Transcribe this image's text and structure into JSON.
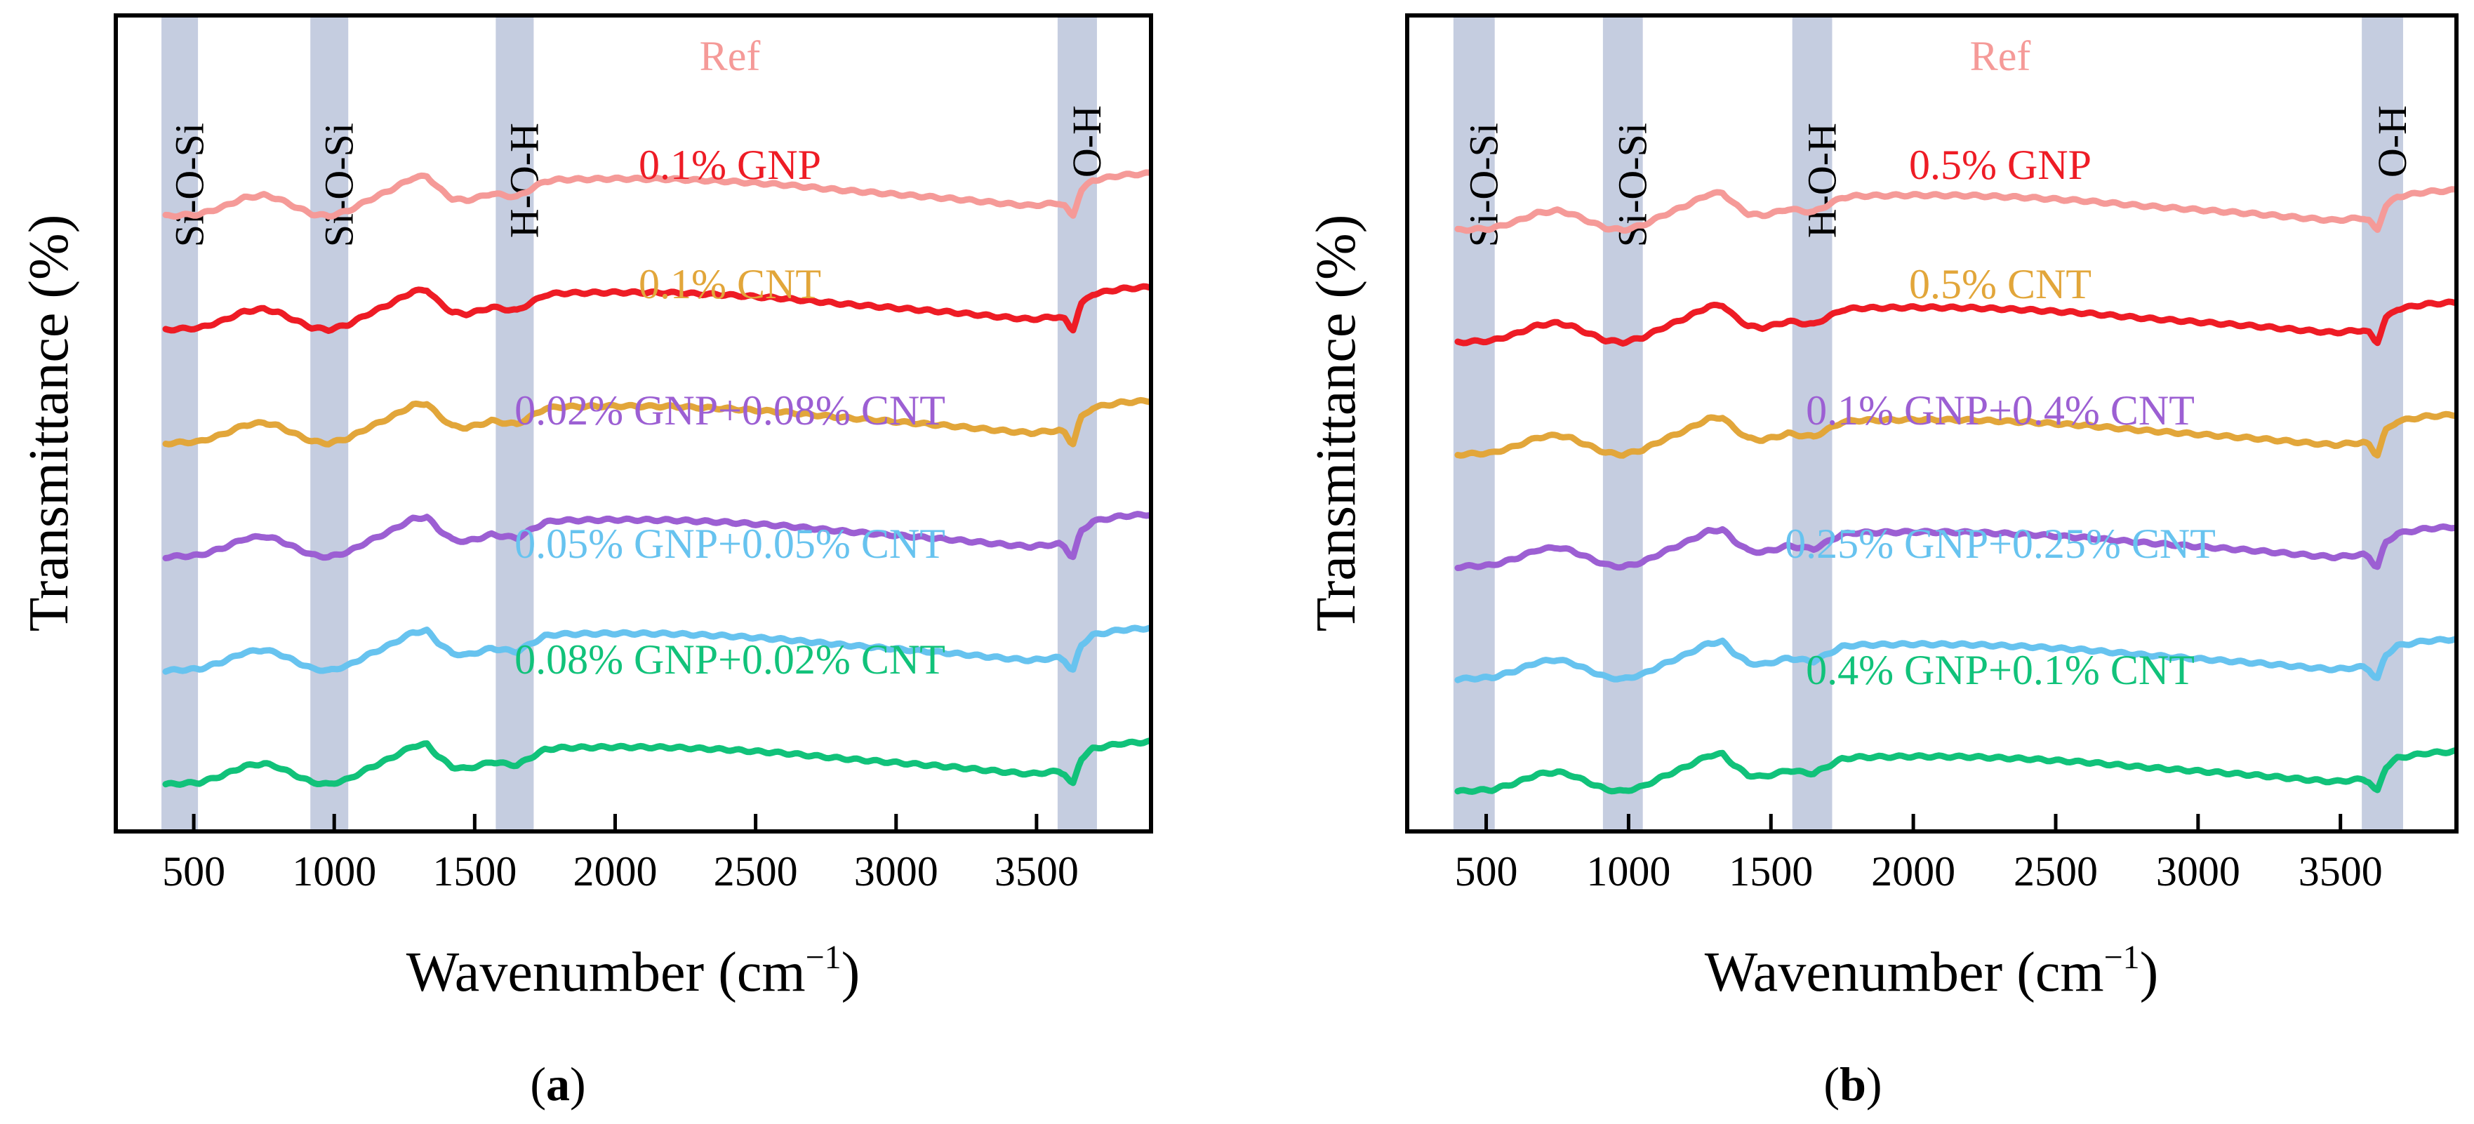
{
  "chart_data": [
    {
      "type": "line",
      "panel": "a",
      "caption": "(a)",
      "caption_letter": "a",
      "xlabel_main": "Wavenumber (cm",
      "xlabel_sup": "−1",
      "xlabel_close": ")",
      "ylabel": "Transmittance (%)",
      "xlim": [
        230,
        3900
      ],
      "x_ticks": [
        500,
        1000,
        1500,
        2000,
        2500,
        3000,
        3500
      ],
      "y_ticks": [],
      "yaxis_numeric": false,
      "highlight_bands": [
        {
          "label": "Si-O-Si",
          "from": 385,
          "to": 515
        },
        {
          "label": "Si-O-Si",
          "from": 915,
          "to": 1050
        },
        {
          "label": "H-O-H",
          "from": 1575,
          "to": 1710
        },
        {
          "label": "O-H",
          "from": 3575,
          "to": 3715
        }
      ],
      "series": [
        {
          "name": "Ref",
          "color": "#f59a98",
          "offset": 5
        },
        {
          "name": "0.1% GNP",
          "color": "#ee1c25",
          "offset": 4
        },
        {
          "name": "0.1% CNT",
          "color": "#e2a63a",
          "offset": 3
        },
        {
          "name": "0.02% GNP+0.08% CNT",
          "color": "#9c5fd3",
          "offset": 2
        },
        {
          "name": "0.05% GNP+0.05% CNT",
          "color": "#67c3ef",
          "offset": 1
        },
        {
          "name": "0.08% GNP+0.02% CNT",
          "color": "#11c27a",
          "offset": 0
        }
      ]
    },
    {
      "type": "line",
      "panel": "b",
      "caption": "(b)",
      "caption_letter": "b",
      "xlabel_main": "Wavenumber (cm",
      "xlabel_sup": "−1",
      "xlabel_close": ")",
      "ylabel": "Transmittance (%)",
      "xlim": [
        230,
        3900
      ],
      "x_ticks": [
        500,
        1000,
        1500,
        2000,
        2500,
        3000,
        3500
      ],
      "y_ticks": [],
      "yaxis_numeric": false,
      "highlight_bands": [
        {
          "label": "Si-O-Si",
          "from": 385,
          "to": 530
        },
        {
          "label": "Si-O-Si",
          "from": 910,
          "to": 1050
        },
        {
          "label": "H-O-H",
          "from": 1575,
          "to": 1715
        },
        {
          "label": "O-H",
          "from": 3575,
          "to": 3720
        }
      ],
      "series": [
        {
          "name": "Ref",
          "color": "#f59a98",
          "offset": 5
        },
        {
          "name": "0.5% GNP",
          "color": "#ee1c25",
          "offset": 4
        },
        {
          "name": "0.5% CNT",
          "color": "#e2a63a",
          "offset": 3
        },
        {
          "name": "0.1% GNP+0.4% CNT",
          "color": "#9c5fd3",
          "offset": 2
        },
        {
          "name": "0.25% GNP+0.25% CNT",
          "color": "#67c3ef",
          "offset": 1
        },
        {
          "name": "0.4% GNP+0.1% CNT",
          "color": "#11c27a",
          "offset": 0
        }
      ]
    }
  ],
  "spectrum_shape": {
    "wavenumber": [
      400,
      450,
      520,
      600,
      680,
      750,
      800,
      860,
      920,
      980,
      1050,
      1120,
      1200,
      1280,
      1330,
      1370,
      1420,
      1470,
      1520,
      1560,
      1600,
      1650,
      1700,
      1750,
      1800,
      2000,
      2200,
      2400,
      2600,
      2800,
      3000,
      3200,
      3400,
      3480,
      3540,
      3580,
      3600,
      3620,
      3632,
      3645,
      3660,
      3700,
      3800,
      3900
    ],
    "relative_transmittance": [
      0.0,
      0.02,
      0.04,
      0.2,
      0.42,
      0.48,
      0.4,
      0.22,
      0.05,
      0.0,
      0.12,
      0.36,
      0.6,
      0.88,
      0.92,
      0.65,
      0.4,
      0.36,
      0.44,
      0.52,
      0.48,
      0.44,
      0.62,
      0.8,
      0.84,
      0.86,
      0.85,
      0.8,
      0.72,
      0.6,
      0.5,
      0.4,
      0.28,
      0.24,
      0.28,
      0.3,
      0.24,
      0.05,
      0.0,
      0.35,
      0.6,
      0.82,
      0.94,
      0.98
    ]
  }
}
